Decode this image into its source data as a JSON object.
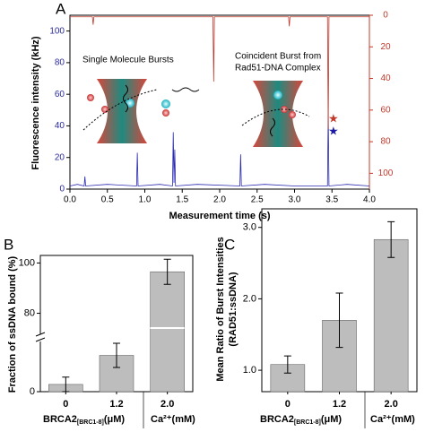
{
  "chart_data": [
    {
      "type": "line",
      "panel_label": "A",
      "xlabel": "Measurement time (s)",
      "ylabel": "Fluorescence intensity (kHz)",
      "annotations": [
        "Single Molecule Bursts",
        "Coincident Burst from",
        "Rad51-DNA Complex"
      ],
      "xlim": [
        0,
        4.0
      ],
      "xticks": [
        {
          "value": 0,
          "label": "0.0"
        },
        0.5,
        {
          "value": 1,
          "label": "1.0"
        },
        1.5,
        {
          "value": 2,
          "label": "2.0"
        },
        2.5,
        {
          "value": 3,
          "label": "3.0"
        },
        3.5,
        {
          "value": 4,
          "label": "4.0"
        }
      ],
      "ylim": [
        0,
        110
      ],
      "yticks": [
        0,
        20,
        40,
        60,
        80,
        100
      ],
      "y2lim": [
        0,
        110
      ],
      "y2ticks": [
        0,
        20,
        40,
        60,
        80,
        100
      ],
      "y2_inverted": true,
      "y2_color": "#c0392b",
      "y_color": "#2b2b9a",
      "series": [
        {
          "name": "blue channel",
          "color": "#2a2ab0",
          "x": [
            0,
            0.1,
            0.19,
            0.2,
            0.21,
            0.5,
            0.89,
            0.9,
            0.91,
            1.2,
            1.37,
            1.38,
            1.39,
            1.4,
            1.41,
            1.7,
            2.27,
            2.28,
            2.29,
            2.6,
            3.0,
            3.44,
            3.45,
            3.46,
            3.7,
            4.0
          ],
          "values": [
            2,
            3,
            2,
            8,
            2,
            3,
            2,
            23,
            2,
            3,
            2,
            36,
            4,
            25,
            2,
            3,
            2,
            22,
            2,
            3,
            2,
            2,
            49,
            2,
            3,
            2
          ]
        },
        {
          "name": "red channel",
          "color": "#c0392b",
          "axis": "y2",
          "x": [
            0,
            0.3,
            0.31,
            0.32,
            1.0,
            1.91,
            1.92,
            1.93,
            2.5,
            2.92,
            2.93,
            2.94,
            3.44,
            3.45,
            3.46,
            4.0
          ],
          "values": [
            1,
            1,
            6,
            1,
            1,
            1,
            42,
            1,
            1,
            1,
            7,
            1,
            1,
            72,
            1,
            1
          ]
        }
      ]
    },
    {
      "type": "bar",
      "panel_label": "B",
      "ylabel": "Fraction of ssDNA bound (%)",
      "categories": [
        "0",
        "1.2",
        "2.0"
      ],
      "values": [
        3,
        15,
        96.5
      ],
      "errors": [
        3,
        5,
        5
      ],
      "color": "#bdbdbd",
      "xlabel": "BRCA2",
      "xlabel_sub": "[BRC1-8]",
      "xlabel_unit": "(μM)",
      "xlabel2": "Ca²⁺(mM)",
      "ylim": [
        0,
        103
      ],
      "y_break": [
        20,
        72
      ],
      "yticks": [
        0,
        80,
        100
      ]
    },
    {
      "type": "bar",
      "panel_label": "C",
      "ylabel": [
        "Mean Ratio of Burst Intensities",
        "(RAD51:ssDNA)"
      ],
      "categories": [
        "0",
        "1.2",
        "2.0"
      ],
      "values": [
        1.08,
        1.7,
        2.83
      ],
      "errors": [
        0.12,
        0.38,
        0.25
      ],
      "color": "#bdbdbd",
      "xlabel": "BRCA2",
      "xlabel_sub": "[BRC1-8]",
      "xlabel_unit": "(μM)",
      "xlabel2": "Ca²⁺(mM)",
      "ylim": [
        0.7,
        3.26
      ],
      "yticks": [
        {
          "value": 1,
          "label": "1.0"
        },
        {
          "value": 2,
          "label": "2.0"
        },
        {
          "value": 3,
          "label": "3.0"
        }
      ]
    }
  ]
}
